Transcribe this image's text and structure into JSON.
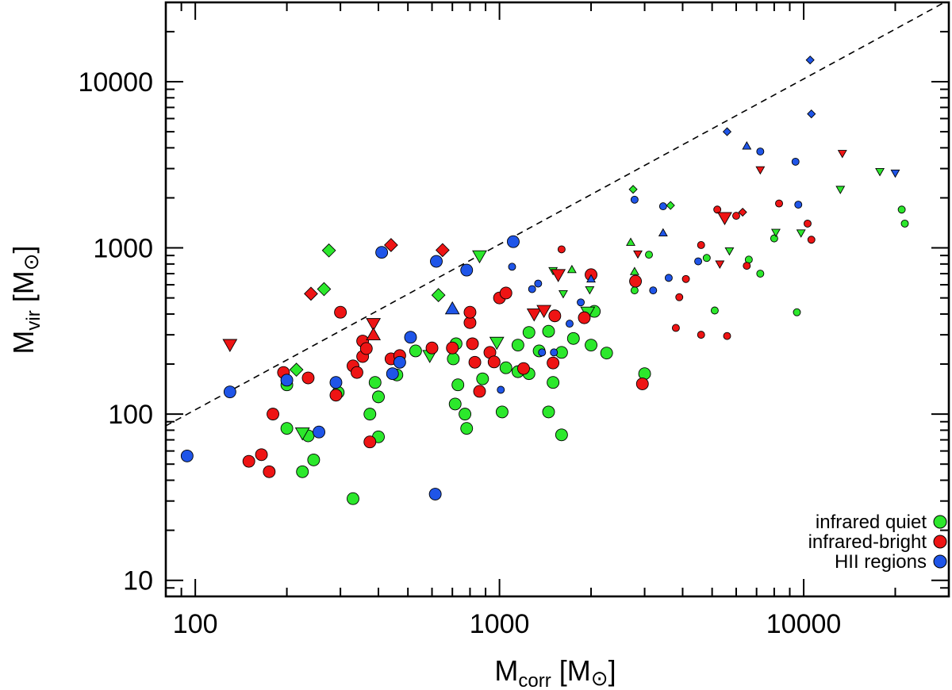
{
  "colors": {
    "infrared_quiet": "#2ce82c",
    "infrared_bright": "#ee1414",
    "hii": "#1f55e8",
    "axis": "#000000"
  },
  "chart_data": {
    "type": "scatter",
    "title": "",
    "xscale": "log",
    "yscale": "log",
    "xlim": [
      80,
      30000
    ],
    "ylim": [
      8,
      30000
    ],
    "xticks": [
      100,
      1000,
      10000
    ],
    "xtick_labels": [
      "100",
      "1000",
      "10000"
    ],
    "yticks": [
      10,
      100,
      1000,
      10000
    ],
    "ytick_labels": [
      "10",
      "100",
      "1000",
      "10000"
    ],
    "xlabel": {
      "main": "M",
      "sub": "corr",
      "unit_open": " [M",
      "unit_symbol": "⊙",
      "unit_close": "]"
    },
    "ylabel": {
      "main": "M",
      "sub": "vir",
      "unit_open": " [M",
      "unit_symbol": "⊙",
      "unit_close": "]"
    },
    "reference_line": {
      "style": "dashed",
      "x": [
        80,
        30000
      ],
      "y": [
        85,
        31000
      ]
    },
    "legend": {
      "position": "bottom-right",
      "entries": [
        {
          "label": "infrared quiet",
          "series": "infrared_quiet"
        },
        {
          "label": "infrared-bright",
          "series": "infrared_bright"
        },
        {
          "label": "HII regions",
          "series": "hii"
        }
      ]
    },
    "series": [
      {
        "name": "infrared quiet",
        "key": "infrared_quiet",
        "points": [
          [
            200,
            150,
            "circle",
            "large"
          ],
          [
            200,
            82,
            "circle",
            "large"
          ],
          [
            225,
            45,
            "circle",
            "large"
          ],
          [
            235,
            74,
            "circle",
            "large"
          ],
          [
            245,
            53,
            "circle",
            "large"
          ],
          [
            295,
            135,
            "circle",
            "large"
          ],
          [
            330,
            31,
            "circle",
            "large"
          ],
          [
            375,
            100,
            "circle",
            "large"
          ],
          [
            390,
            155,
            "circle",
            "large"
          ],
          [
            400,
            127,
            "circle",
            "large"
          ],
          [
            400,
            73,
            "circle",
            "large"
          ],
          [
            460,
            172,
            "circle",
            "large"
          ],
          [
            530,
            240,
            "circle",
            "large"
          ],
          [
            705,
            215,
            "circle",
            "large"
          ],
          [
            715,
            115,
            "circle",
            "large"
          ],
          [
            720,
            265,
            "circle",
            "large"
          ],
          [
            730,
            150,
            "circle",
            "large"
          ],
          [
            770,
            100,
            "circle",
            "large"
          ],
          [
            780,
            82,
            "circle",
            "large"
          ],
          [
            880,
            163,
            "circle",
            "large"
          ],
          [
            1020,
            103,
            "circle",
            "large"
          ],
          [
            1050,
            190,
            "circle",
            "large"
          ],
          [
            1150,
            180,
            "circle",
            "large"
          ],
          [
            1150,
            260,
            "circle",
            "large"
          ],
          [
            1250,
            175,
            "circle",
            "large"
          ],
          [
            1250,
            310,
            "circle",
            "large"
          ],
          [
            1350,
            240,
            "circle",
            "large"
          ],
          [
            1450,
            315,
            "circle",
            "large"
          ],
          [
            1450,
            103,
            "circle",
            "large"
          ],
          [
            1500,
            155,
            "circle",
            "large"
          ],
          [
            1600,
            235,
            "circle",
            "large"
          ],
          [
            1600,
            75,
            "circle",
            "large"
          ],
          [
            1750,
            285,
            "circle",
            "large"
          ],
          [
            2000,
            260,
            "circle",
            "large"
          ],
          [
            2050,
            415,
            "circle",
            "large"
          ],
          [
            2250,
            233,
            "circle",
            "large"
          ],
          [
            3000,
            175,
            "circle",
            "large"
          ],
          [
            2780,
            555,
            "circle",
            "small"
          ],
          [
            3100,
            910,
            "circle",
            "small"
          ],
          [
            4800,
            870,
            "circle",
            "small"
          ],
          [
            5100,
            420,
            "circle",
            "small"
          ],
          [
            6600,
            850,
            "circle",
            "small"
          ],
          [
            7200,
            700,
            "circle",
            "small"
          ],
          [
            8000,
            1140,
            "circle",
            "small"
          ],
          [
            9500,
            410,
            "circle",
            "small"
          ],
          [
            21000,
            1700,
            "circle",
            "small"
          ],
          [
            21500,
            1400,
            "circle",
            "small"
          ],
          [
            215,
            185,
            "diamond",
            "large"
          ],
          [
            265,
            565,
            "diamond",
            "large"
          ],
          [
            275,
            965,
            "diamond",
            "large"
          ],
          [
            630,
            520,
            "diamond",
            "large"
          ],
          [
            2750,
            2250,
            "diamond",
            "small"
          ],
          [
            3650,
            1800,
            "diamond",
            "small"
          ],
          [
            225,
            77,
            "tri-down",
            "large"
          ],
          [
            590,
            225,
            "tri-down",
            "large"
          ],
          [
            860,
            895,
            "tri-down",
            "large"
          ],
          [
            980,
            270,
            "tri-down",
            "large"
          ],
          [
            1950,
            410,
            "tri-down",
            "large"
          ],
          [
            1500,
            730,
            "tri-down",
            "small"
          ],
          [
            1620,
            530,
            "tri-down",
            "small"
          ],
          [
            1980,
            560,
            "tri-down",
            "small"
          ],
          [
            5700,
            960,
            "tri-down",
            "small"
          ],
          [
            8100,
            1240,
            "tri-down",
            "small"
          ],
          [
            9800,
            1230,
            "tri-down",
            "small"
          ],
          [
            13200,
            2250,
            "tri-down",
            "small"
          ],
          [
            17800,
            2880,
            "tri-down",
            "small"
          ],
          [
            1730,
            740,
            "tri-up",
            "small"
          ],
          [
            2700,
            1080,
            "tri-up",
            "small"
          ],
          [
            2780,
            720,
            "tri-up",
            "small"
          ]
        ]
      },
      {
        "name": "infrared-bright",
        "key": "infrared_bright",
        "points": [
          [
            150,
            52,
            "circle",
            "large"
          ],
          [
            165,
            57,
            "circle",
            "large"
          ],
          [
            175,
            45,
            "circle",
            "large"
          ],
          [
            180,
            100,
            "circle",
            "large"
          ],
          [
            195,
            178,
            "circle",
            "large"
          ],
          [
            235,
            165,
            "circle",
            "large"
          ],
          [
            290,
            130,
            "circle",
            "large"
          ],
          [
            300,
            410,
            "circle",
            "large"
          ],
          [
            330,
            195,
            "circle",
            "large"
          ],
          [
            340,
            178,
            "circle",
            "large"
          ],
          [
            355,
            275,
            "circle",
            "large"
          ],
          [
            355,
            222,
            "circle",
            "large"
          ],
          [
            365,
            248,
            "circle",
            "large"
          ],
          [
            375,
            68,
            "circle",
            "large"
          ],
          [
            440,
            215,
            "circle",
            "large"
          ],
          [
            470,
            225,
            "circle",
            "large"
          ],
          [
            600,
            250,
            "circle",
            "large"
          ],
          [
            700,
            250,
            "circle",
            "large"
          ],
          [
            800,
            355,
            "circle",
            "large"
          ],
          [
            800,
            410,
            "circle",
            "large"
          ],
          [
            815,
            265,
            "circle",
            "large"
          ],
          [
            830,
            205,
            "circle",
            "large"
          ],
          [
            860,
            137,
            "circle",
            "large"
          ],
          [
            930,
            235,
            "circle",
            "large"
          ],
          [
            960,
            206,
            "circle",
            "large"
          ],
          [
            1000,
            500,
            "circle",
            "large"
          ],
          [
            1050,
            535,
            "circle",
            "large"
          ],
          [
            1200,
            188,
            "circle",
            "large"
          ],
          [
            1500,
            203,
            "circle",
            "large"
          ],
          [
            1520,
            390,
            "circle",
            "large"
          ],
          [
            1900,
            380,
            "circle",
            "large"
          ],
          [
            2000,
            690,
            "circle",
            "large"
          ],
          [
            2800,
            630,
            "circle",
            "large"
          ],
          [
            2950,
            152,
            "circle",
            "large"
          ],
          [
            1600,
            980,
            "circle",
            "small"
          ],
          [
            3800,
            330,
            "circle",
            "small"
          ],
          [
            3900,
            505,
            "circle",
            "small"
          ],
          [
            4100,
            650,
            "circle",
            "small"
          ],
          [
            4600,
            1040,
            "circle",
            "small"
          ],
          [
            4600,
            300,
            "circle",
            "small"
          ],
          [
            5200,
            1700,
            "circle",
            "small"
          ],
          [
            5600,
            295,
            "circle",
            "small"
          ],
          [
            6000,
            1560,
            "circle",
            "small"
          ],
          [
            6500,
            780,
            "circle",
            "small"
          ],
          [
            8300,
            1850,
            "circle",
            "small"
          ],
          [
            10300,
            1400,
            "circle",
            "small"
          ],
          [
            10600,
            1120,
            "circle",
            "small"
          ],
          [
            240,
            530,
            "diamond",
            "large"
          ],
          [
            440,
            1040,
            "diamond",
            "large"
          ],
          [
            650,
            970,
            "diamond",
            "large"
          ],
          [
            6300,
            1640,
            "diamond",
            "small"
          ],
          [
            130,
            262,
            "tri-down",
            "large"
          ],
          [
            385,
            350,
            "tri-down",
            "large"
          ],
          [
            1300,
            400,
            "tri-down",
            "large"
          ],
          [
            1400,
            420,
            "tri-down",
            "large"
          ],
          [
            1560,
            690,
            "tri-down",
            "large"
          ],
          [
            5500,
            1520,
            "tri-down",
            "large"
          ],
          [
            2850,
            920,
            "tri-down",
            "small"
          ],
          [
            5300,
            800,
            "tri-down",
            "small"
          ],
          [
            7200,
            2950,
            "tri-down",
            "small"
          ],
          [
            13400,
            3700,
            "tri-down",
            "small"
          ],
          [
            385,
            300,
            "tri-up",
            "large"
          ]
        ]
      },
      {
        "name": "HII regions",
        "key": "hii",
        "points": [
          [
            94,
            56,
            "circle",
            "large"
          ],
          [
            130,
            136,
            "circle",
            "large"
          ],
          [
            200,
            160,
            "circle",
            "large"
          ],
          [
            255,
            78,
            "circle",
            "large"
          ],
          [
            290,
            155,
            "circle",
            "large"
          ],
          [
            410,
            940,
            "circle",
            "large"
          ],
          [
            445,
            175,
            "circle",
            "large"
          ],
          [
            470,
            205,
            "circle",
            "large"
          ],
          [
            510,
            290,
            "circle",
            "large"
          ],
          [
            615,
            33,
            "circle",
            "large"
          ],
          [
            620,
            830,
            "circle",
            "large"
          ],
          [
            780,
            735,
            "circle",
            "large"
          ],
          [
            1110,
            1090,
            "circle",
            "large"
          ],
          [
            1010,
            140,
            "circle",
            "small"
          ],
          [
            1100,
            770,
            "circle",
            "small"
          ],
          [
            1280,
            565,
            "circle",
            "small"
          ],
          [
            1340,
            610,
            "circle",
            "small"
          ],
          [
            1380,
            235,
            "circle",
            "small"
          ],
          [
            1510,
            235,
            "circle",
            "small"
          ],
          [
            1700,
            350,
            "circle",
            "small"
          ],
          [
            1850,
            470,
            "circle",
            "small"
          ],
          [
            2780,
            1950,
            "circle",
            "small"
          ],
          [
            3200,
            555,
            "circle",
            "small"
          ],
          [
            3450,
            1780,
            "circle",
            "small"
          ],
          [
            3600,
            660,
            "circle",
            "small"
          ],
          [
            4500,
            830,
            "circle",
            "small"
          ],
          [
            7200,
            3800,
            "circle",
            "small"
          ],
          [
            9400,
            3300,
            "circle",
            "small"
          ],
          [
            9600,
            1820,
            "circle",
            "small"
          ],
          [
            5600,
            5000,
            "diamond",
            "small"
          ],
          [
            10500,
            13500,
            "diamond",
            "small"
          ],
          [
            10600,
            6400,
            "diamond",
            "small"
          ],
          [
            700,
            430,
            "tri-up",
            "large"
          ],
          [
            2000,
            650,
            "tri-up",
            "small"
          ],
          [
            3450,
            1230,
            "tri-up",
            "small"
          ],
          [
            6500,
            4100,
            "tri-up",
            "small"
          ],
          [
            20000,
            2820,
            "tri-down",
            "small"
          ]
        ]
      }
    ]
  }
}
